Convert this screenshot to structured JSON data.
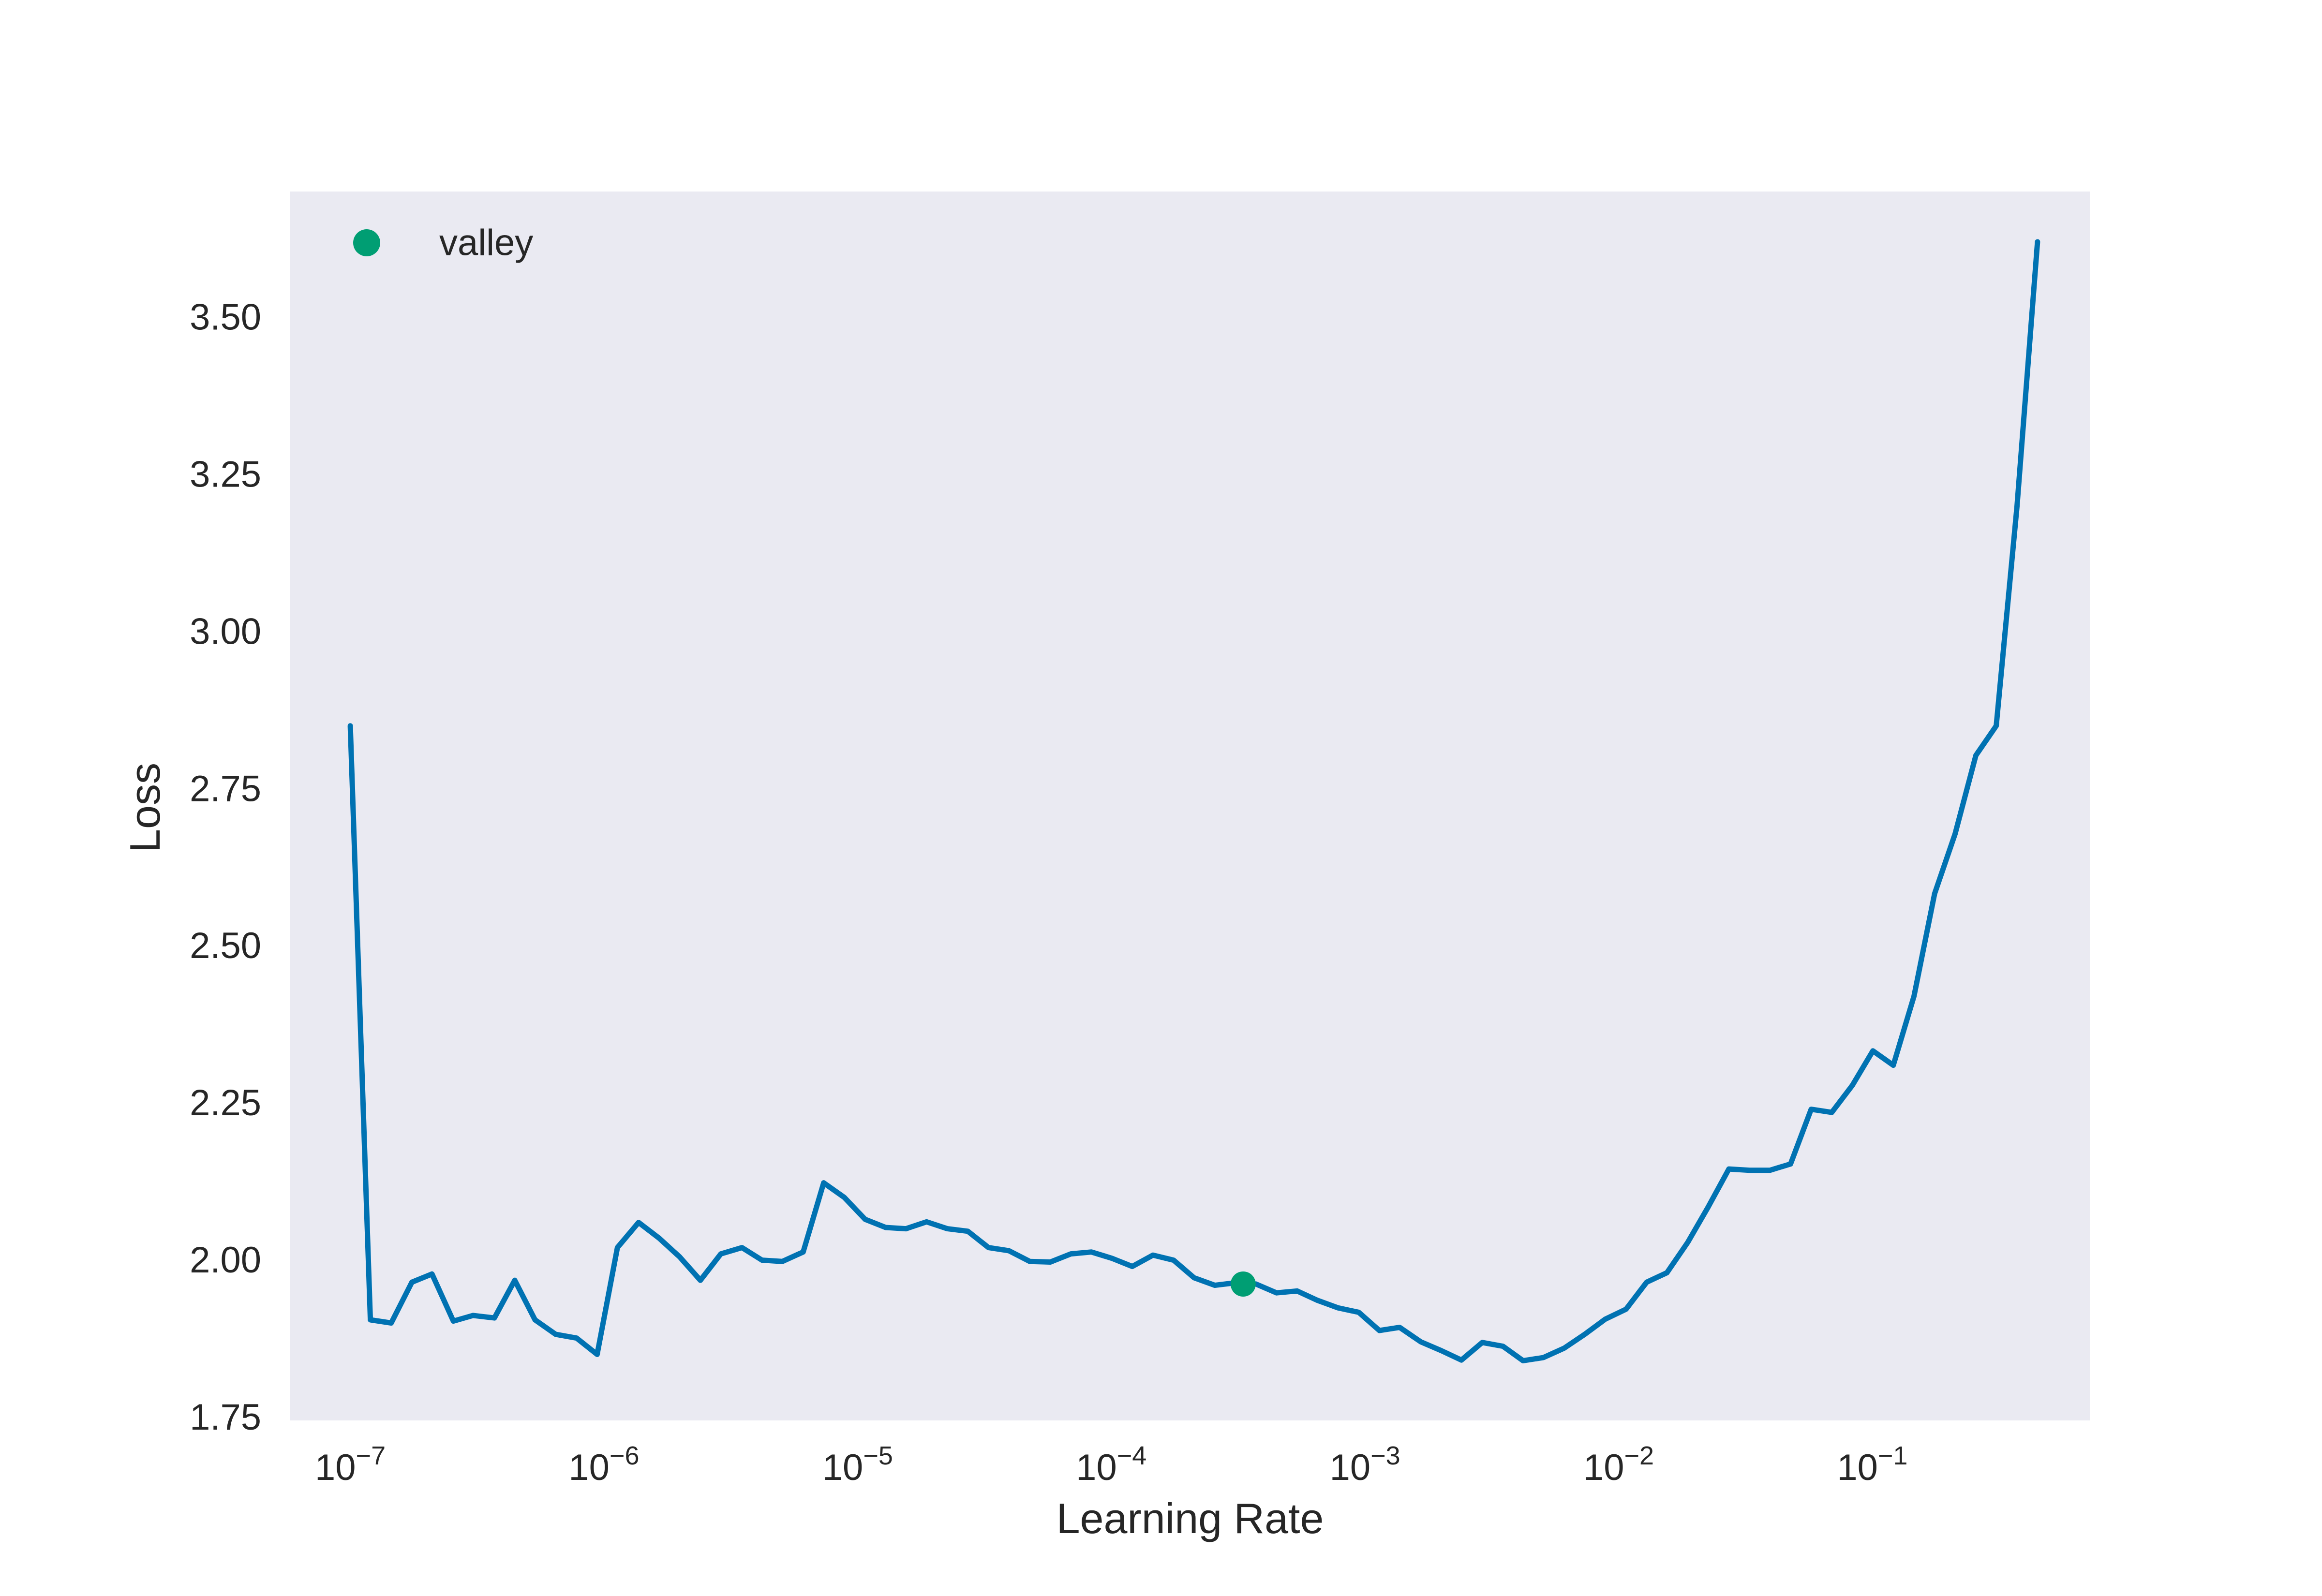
{
  "chart_data": {
    "type": "line",
    "xscale": "log",
    "xlabel": "Learning Rate",
    "ylabel": "Loss",
    "xlim": [
      5.8e-08,
      0.72
    ],
    "ylim": [
      1.745,
      3.7
    ],
    "grid": false,
    "legend": {
      "placement": "top-left",
      "entries": [
        "valley"
      ]
    },
    "x_ticks": [
      {
        "value": 1e-07,
        "base": "10",
        "exp": "−7"
      },
      {
        "value": 1e-06,
        "base": "10",
        "exp": "−6"
      },
      {
        "value": 1e-05,
        "base": "10",
        "exp": "−5"
      },
      {
        "value": 0.0001,
        "base": "10",
        "exp": "−4"
      },
      {
        "value": 0.001,
        "base": "10",
        "exp": "−3"
      },
      {
        "value": 0.01,
        "base": "10",
        "exp": "−2"
      },
      {
        "value": 0.1,
        "base": "10",
        "exp": "−1"
      }
    ],
    "y_ticks": [
      {
        "value": 1.75,
        "label": "1.75"
      },
      {
        "value": 2.0,
        "label": "2.00"
      },
      {
        "value": 2.25,
        "label": "2.25"
      },
      {
        "value": 2.5,
        "label": "2.50"
      },
      {
        "value": 2.75,
        "label": "2.75"
      },
      {
        "value": 3.0,
        "label": "3.00"
      },
      {
        "value": 3.25,
        "label": "3.25"
      },
      {
        "value": 3.5,
        "label": "3.50"
      }
    ],
    "series": [
      {
        "color": "#0072b2",
        "points": [
          [
            1e-07,
            2.85
          ],
          [
            1.2e-07,
            1.905
          ],
          [
            1.45e-07,
            1.9
          ],
          [
            1.75e-07,
            1.965
          ],
          [
            2.1e-07,
            1.978
          ],
          [
            2.55e-07,
            1.903
          ],
          [
            3.05e-07,
            1.912
          ],
          [
            3.7e-07,
            1.908
          ],
          [
            4.45e-07,
            1.968
          ],
          [
            5.35e-07,
            1.905
          ],
          [
            6.45e-07,
            1.882
          ],
          [
            7.8e-07,
            1.876
          ],
          [
            9.4e-07,
            1.85
          ],
          [
            1.13e-06,
            2.02
          ],
          [
            1.37e-06,
            2.06
          ],
          [
            1.65e-06,
            2.035
          ],
          [
            1.99e-06,
            2.005
          ],
          [
            2.4e-06,
            1.968
          ],
          [
            2.89e-06,
            2.01
          ],
          [
            3.5e-06,
            2.02
          ],
          [
            4.2e-06,
            2.0
          ],
          [
            5.05e-06,
            1.998
          ],
          [
            6.1e-06,
            2.013
          ],
          [
            7.35e-06,
            2.123
          ],
          [
            8.85e-06,
            2.1
          ],
          [
            1.07e-05,
            2.065
          ],
          [
            1.29e-05,
            2.052
          ],
          [
            1.55e-05,
            2.05
          ],
          [
            1.87e-05,
            2.061
          ],
          [
            2.26e-05,
            2.05
          ],
          [
            2.72e-05,
            2.046
          ],
          [
            3.28e-05,
            2.02
          ],
          [
            3.95e-05,
            2.015
          ],
          [
            4.77e-05,
            1.998
          ],
          [
            5.75e-05,
            1.997
          ],
          [
            6.93e-05,
            2.01
          ],
          [
            8.35e-05,
            2.013
          ],
          [
            0.0001005,
            2.003
          ],
          [
            0.000121,
            1.99
          ],
          [
            0.000146,
            2.008
          ],
          [
            0.000176,
            2.0
          ],
          [
            0.000212,
            1.972
          ],
          [
            0.000256,
            1.96
          ],
          [
            0.000308,
            1.964
          ],
          [
            0.000372,
            1.962
          ],
          [
            0.000448,
            1.948
          ],
          [
            0.00054,
            1.951
          ],
          [
            0.00065,
            1.936
          ],
          [
            0.000784,
            1.924
          ],
          [
            0.000945,
            1.917
          ],
          [
            0.00114,
            1.888
          ],
          [
            0.00137,
            1.893
          ],
          [
            0.00166,
            1.87
          ],
          [
            0.002,
            1.856
          ],
          [
            0.0024,
            1.841
          ],
          [
            0.0029,
            1.869
          ],
          [
            0.0035,
            1.863
          ],
          [
            0.0042,
            1.84
          ],
          [
            0.00505,
            1.845
          ],
          [
            0.0061,
            1.86
          ],
          [
            0.00735,
            1.882
          ],
          [
            0.00885,
            1.906
          ],
          [
            0.0107,
            1.922
          ],
          [
            0.0129,
            1.965
          ],
          [
            0.0155,
            1.98
          ],
          [
            0.0187,
            2.028
          ],
          [
            0.0225,
            2.084
          ],
          [
            0.0272,
            2.145
          ],
          [
            0.0328,
            2.143
          ],
          [
            0.0395,
            2.143
          ],
          [
            0.0476,
            2.153
          ],
          [
            0.0574,
            2.24
          ],
          [
            0.0692,
            2.235
          ],
          [
            0.0834,
            2.278
          ],
          [
            0.1005,
            2.333
          ],
          [
            0.121,
            2.31
          ],
          [
            0.146,
            2.42
          ],
          [
            0.176,
            2.583
          ],
          [
            0.212,
            2.678
          ],
          [
            0.256,
            2.803
          ],
          [
            0.308,
            2.85
          ],
          [
            0.372,
            3.2
          ],
          [
            0.448,
            3.62
          ]
        ]
      }
    ],
    "markers": [
      {
        "name": "valley",
        "x": 0.000331,
        "y": 1.962,
        "color": "#009e73"
      }
    ]
  }
}
